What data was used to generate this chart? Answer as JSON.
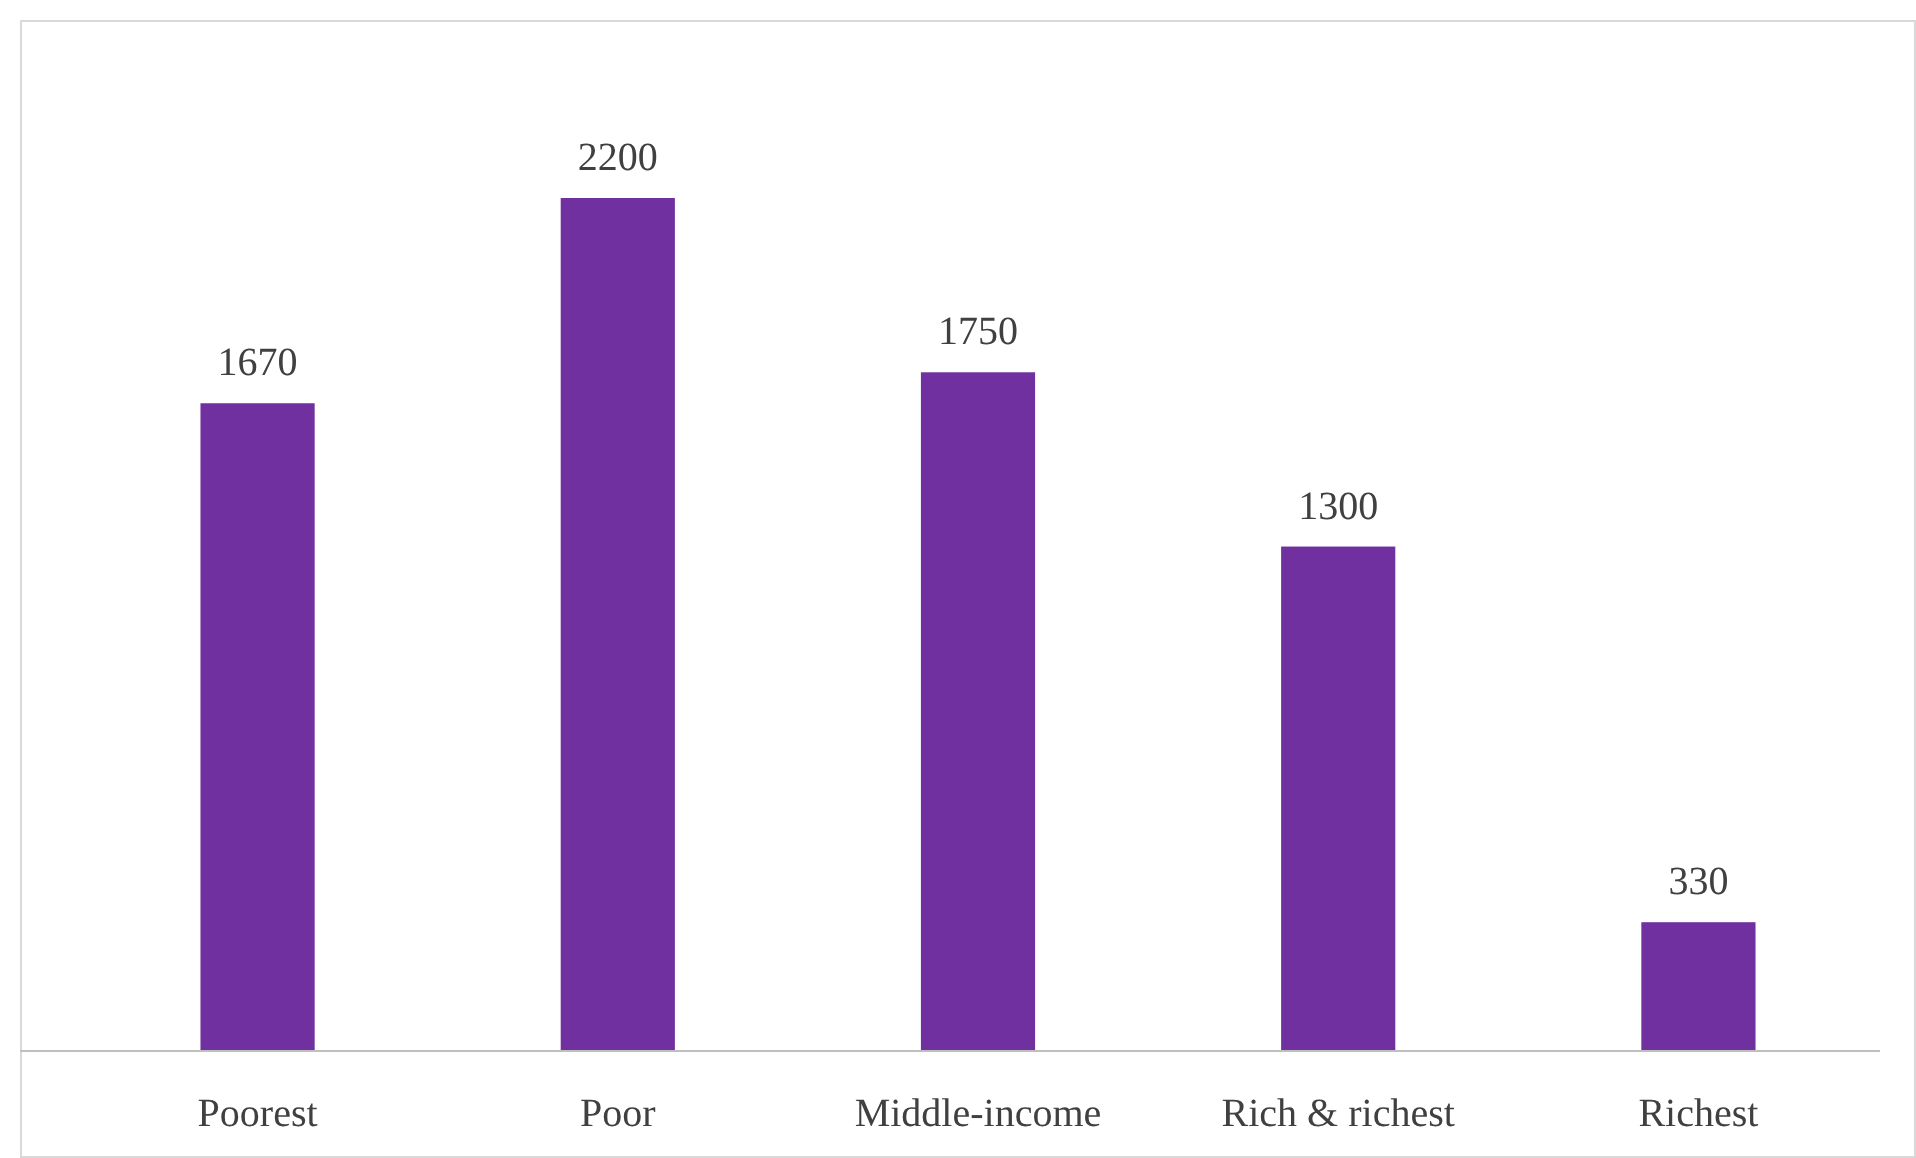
{
  "chart_data": {
    "type": "bar",
    "categories": [
      "Poorest",
      "Poor",
      "Middle-income",
      "Rich & richest",
      "Richest"
    ],
    "values": [
      1670,
      2200,
      1750,
      1300,
      330
    ],
    "color": "#7030a0",
    "data_labels": true
  }
}
